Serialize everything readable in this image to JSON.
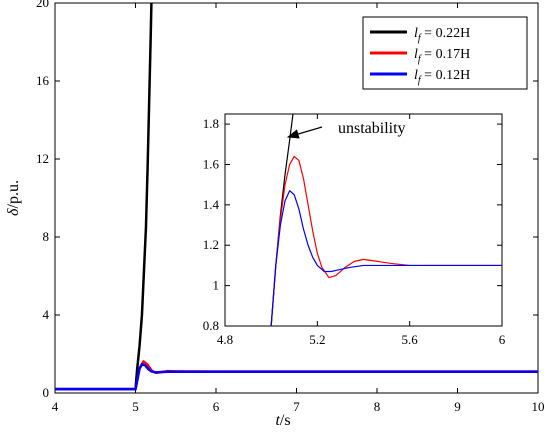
{
  "chart_data": [
    {
      "type": "line",
      "role": "main",
      "xlabel": "t/s",
      "ylabel": "δ/p.u.",
      "xlim": [
        4,
        10
      ],
      "ylim": [
        0,
        20
      ],
      "xticks": [
        "4",
        "5",
        "6",
        "7",
        "8",
        "9",
        "10"
      ],
      "yticks": [
        "0",
        "4",
        "8",
        "12",
        "16",
        "20"
      ],
      "grid": false,
      "legend": "top-right",
      "series": [
        {
          "name": "l_f = 0.22H",
          "color": "#000000",
          "x": [
            4,
            5.0,
            5.02,
            5.05,
            5.08,
            5.1,
            5.13,
            5.15,
            5.17,
            5.19,
            5.2
          ],
          "y": [
            0.2,
            0.2,
            1.2,
            2.4,
            4.0,
            5.8,
            8.5,
            11.5,
            15.0,
            18.5,
            20.5
          ]
        },
        {
          "name": "l_f = 0.17H",
          "color": "#ff0000",
          "x": [
            4,
            5.0,
            5.05,
            5.1,
            5.15,
            5.2,
            5.25,
            5.3,
            5.4,
            5.5,
            6,
            7,
            8,
            9,
            10
          ],
          "y": [
            0.2,
            0.2,
            1.25,
            1.62,
            1.45,
            1.15,
            1.04,
            1.06,
            1.12,
            1.11,
            1.1,
            1.1,
            1.1,
            1.1,
            1.1
          ]
        },
        {
          "name": "l_f = 0.12H",
          "color": "#0000ff",
          "x": [
            4,
            5.0,
            5.05,
            5.08,
            5.12,
            5.16,
            5.2,
            5.25,
            5.3,
            5.4,
            5.5,
            6,
            7,
            8,
            9,
            10
          ],
          "y": [
            0.2,
            0.2,
            1.25,
            1.47,
            1.42,
            1.22,
            1.1,
            1.06,
            1.07,
            1.09,
            1.09,
            1.09,
            1.09,
            1.09,
            1.09,
            1.09
          ]
        }
      ]
    },
    {
      "type": "line",
      "role": "inset",
      "xlim": [
        4.8,
        6
      ],
      "ylim": [
        0.8,
        1.85
      ],
      "xticks": [
        "4.8",
        "5.2",
        "5.6",
        "6"
      ],
      "yticks": [
        "0.8",
        "1",
        "1.2",
        "1.4",
        "1.6",
        "1.8"
      ],
      "annotation": "unstability",
      "series": [
        {
          "color": "#000000",
          "x": [
            5.0,
            5.02,
            5.04,
            5.06,
            5.08,
            5.1
          ],
          "y": [
            0.8,
            1.1,
            1.35,
            1.55,
            1.72,
            1.9
          ]
        },
        {
          "color": "#ff0000",
          "x": [
            5.0,
            5.02,
            5.04,
            5.06,
            5.08,
            5.1,
            5.12,
            5.14,
            5.16,
            5.18,
            5.2,
            5.22,
            5.25,
            5.28,
            5.32,
            5.36,
            5.4,
            5.46,
            5.52,
            5.6,
            5.7,
            5.8,
            5.9,
            6.0
          ],
          "y": [
            0.8,
            1.1,
            1.33,
            1.5,
            1.6,
            1.64,
            1.62,
            1.53,
            1.4,
            1.27,
            1.16,
            1.09,
            1.04,
            1.05,
            1.09,
            1.12,
            1.13,
            1.12,
            1.11,
            1.1,
            1.1,
            1.1,
            1.1,
            1.1
          ]
        },
        {
          "color": "#0000ff",
          "x": [
            5.0,
            5.02,
            5.04,
            5.06,
            5.08,
            5.1,
            5.12,
            5.14,
            5.16,
            5.18,
            5.2,
            5.23,
            5.26,
            5.3,
            5.34,
            5.4,
            5.5,
            5.6,
            5.7,
            5.8,
            5.9,
            6.0
          ],
          "y": [
            0.8,
            1.1,
            1.3,
            1.42,
            1.47,
            1.45,
            1.38,
            1.28,
            1.2,
            1.14,
            1.1,
            1.07,
            1.07,
            1.08,
            1.09,
            1.1,
            1.1,
            1.1,
            1.1,
            1.1,
            1.1,
            1.1
          ]
        }
      ]
    }
  ]
}
